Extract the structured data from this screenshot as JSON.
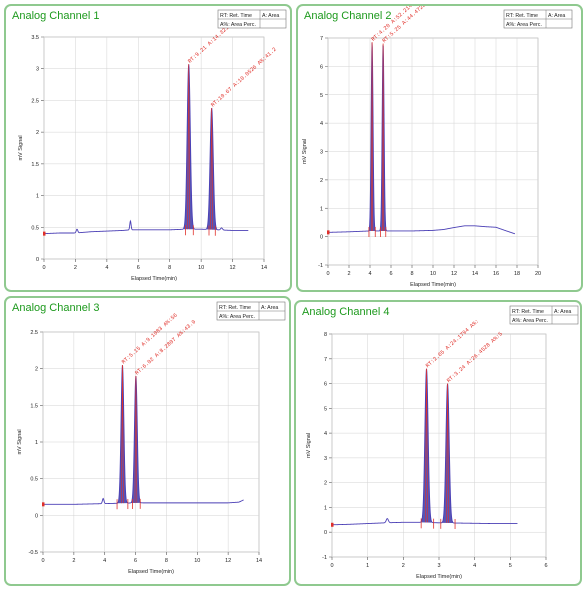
{
  "chart_data": [
    {
      "type": "line",
      "title": "Analog Channel 1",
      "xlabel": "Elapsed Time(min)",
      "ylabel": "mV Signal",
      "xlim": [
        0,
        14
      ],
      "ylim": [
        0,
        3.5
      ],
      "xticks": [
        "0",
        "2",
        "4",
        "6",
        "8",
        "10",
        "12",
        "14"
      ],
      "yticks": [
        "0",
        "0.5",
        "1",
        "1.5",
        "2",
        "2.5",
        "3",
        "3.5"
      ],
      "legend": {
        "position": "top-right",
        "rows": [
          [
            "RT: Ret. Time",
            "A: Area"
          ],
          [
            "A%: Area Perc.",
            ""
          ]
        ]
      },
      "series": [
        {
          "baseline": [
            [
              0.0,
              0.4
            ],
            [
              1.0,
              0.41
            ],
            [
              2.0,
              0.41
            ],
            [
              3.0,
              0.43
            ],
            [
              4.0,
              0.44
            ],
            [
              5.0,
              0.45
            ],
            [
              5.5,
              0.46
            ],
            [
              6.0,
              0.46
            ],
            [
              7.0,
              0.46
            ],
            [
              8.0,
              0.46
            ],
            [
              9.0,
              0.47
            ],
            [
              10.0,
              0.47
            ],
            [
              11.0,
              0.46
            ],
            [
              12.0,
              0.45
            ],
            [
              13.0,
              0.45
            ]
          ],
          "peaks": [
            [
              9.21,
              3.07,
              0.1
            ],
            [
              10.67,
              2.38,
              0.1
            ],
            [
              5.5,
              0.6,
              0.04
            ],
            [
              2.1,
              0.47,
              0.05
            ],
            [
              11.3,
              0.49,
              0.06
            ]
          ],
          "range": [
            0,
            13
          ]
        }
      ],
      "annotations": [
        "RT:9.21 A:14.3215 A%:5",
        "RT:10.67 A:10.0526 A%:41.2"
      ],
      "peak_labels": [
        {
          "x": 9.21,
          "y": 3.07
        },
        {
          "x": 10.67,
          "y": 2.38
        }
      ],
      "markers": [
        9.0,
        9.5,
        10.5,
        10.9
      ]
    },
    {
      "type": "line",
      "title": "Analog Channel 2",
      "xlabel": "Elapsed Time(min)",
      "ylabel": "mV Signal",
      "xlim": [
        0,
        20
      ],
      "ylim": [
        -1,
        7
      ],
      "xticks": [
        "0",
        "2",
        "4",
        "6",
        "8",
        "10",
        "12",
        "14",
        "16",
        "18",
        "20"
      ],
      "yticks": [
        "-1",
        "0",
        "1",
        "2",
        "3",
        "4",
        "5",
        "6",
        "7"
      ],
      "legend": {
        "position": "top-right",
        "rows": [
          [
            "RT: Ret. Time",
            "A: Area"
          ],
          [
            "A%: Area Perc.",
            ""
          ]
        ]
      },
      "series": [
        {
          "baseline": [
            [
              0.0,
              0.15
            ],
            [
              2.0,
              0.17
            ],
            [
              4.0,
              0.2
            ],
            [
              6.0,
              0.2
            ],
            [
              8.0,
              0.2
            ],
            [
              10.0,
              0.22
            ],
            [
              11.0,
              0.25
            ],
            [
              12.0,
              0.32
            ],
            [
              13.0,
              0.38
            ],
            [
              14.0,
              0.38
            ],
            [
              15.0,
              0.35
            ],
            [
              16.0,
              0.33
            ],
            [
              17.0,
              0.2
            ],
            [
              17.8,
              0.1
            ]
          ],
          "peaks": [
            [
              4.2,
              6.85,
              0.09
            ],
            [
              5.25,
              6.8,
              0.09
            ]
          ],
          "range": [
            0,
            17.8
          ]
        }
      ],
      "annotations": [
        "RT:4.20 A:52.2144 A%:4",
        "RT:5.25 A:44.4722 A%:4"
      ],
      "peak_labels": [
        {
          "x": 4.2,
          "y": 6.85
        },
        {
          "x": 5.25,
          "y": 6.8
        }
      ],
      "markers": [
        3.9,
        4.5,
        5.0,
        5.5
      ]
    },
    {
      "type": "line",
      "title": "Analog Channel 3",
      "xlabel": "Elapsed Time(min)",
      "ylabel": "mV Signal",
      "xlim": [
        0,
        14
      ],
      "ylim": [
        -0.5,
        2.5
      ],
      "xticks": [
        "0",
        "2",
        "4",
        "6",
        "8",
        "10",
        "12",
        "14"
      ],
      "yticks": [
        "-0.5",
        "0",
        "0.5",
        "1",
        "1.5",
        "2",
        "2.5"
      ],
      "legend": {
        "position": "top-right",
        "rows": [
          [
            "RT: Ret. Time",
            "A: Area"
          ],
          [
            "A%: Area Perc.",
            ""
          ]
        ]
      },
      "series": [
        {
          "baseline": [
            [
              0.0,
              0.15
            ],
            [
              2.0,
              0.15
            ],
            [
              4.0,
              0.16
            ],
            [
              6.0,
              0.17
            ],
            [
              8.0,
              0.17
            ],
            [
              10.0,
              0.17
            ],
            [
              12.0,
              0.17
            ],
            [
              12.7,
              0.18
            ],
            [
              13.0,
              0.21
            ]
          ],
          "peaks": [
            [
              5.15,
              2.05,
              0.09
            ],
            [
              6.02,
              1.9,
              0.09
            ],
            [
              3.9,
              0.23,
              0.05
            ]
          ],
          "range": [
            0,
            13
          ]
        }
      ],
      "annotations": [
        "RT:5.15 A:9.1083 A%:56",
        "RT:6.02 A:8.2807 A%:43.9"
      ],
      "peak_labels": [
        {
          "x": 5.15,
          "y": 2.05
        },
        {
          "x": 6.02,
          "y": 1.9
        }
      ],
      "markers": [
        4.8,
        5.5,
        5.8,
        6.3
      ]
    },
    {
      "type": "line",
      "title": "Analog Channel 4",
      "xlabel": "Elapsed Time(min)",
      "ylabel": "mV Signal",
      "xlim": [
        0,
        6
      ],
      "ylim": [
        -1,
        8
      ],
      "xticks": [
        "0",
        "1",
        "2",
        "3",
        "4",
        "5",
        "6"
      ],
      "yticks": [
        "-1",
        "0",
        "1",
        "2",
        "3",
        "4",
        "5",
        "6",
        "7",
        "8"
      ],
      "legend": {
        "position": "top-right",
        "rows": [
          [
            "RT: Ret. Time",
            "A: Area"
          ],
          [
            "A%: Area Perc.",
            ""
          ]
        ]
      },
      "series": [
        {
          "baseline": [
            [
              0.0,
              0.3
            ],
            [
              0.5,
              0.32
            ],
            [
              1.0,
              0.35
            ],
            [
              1.5,
              0.38
            ],
            [
              2.0,
              0.4
            ],
            [
              2.5,
              0.4
            ],
            [
              3.0,
              0.38
            ],
            [
              3.5,
              0.37
            ],
            [
              4.0,
              0.36
            ],
            [
              4.5,
              0.35
            ],
            [
              5.0,
              0.35
            ],
            [
              5.2,
              0.35
            ]
          ],
          "peaks": [
            [
              2.65,
              6.6,
              0.045
            ],
            [
              3.24,
              6.0,
              0.045
            ],
            [
              1.55,
              0.55,
              0.03
            ]
          ],
          "range": [
            0,
            5.2
          ]
        }
      ],
      "annotations": [
        "RT:2.65 A:24.1794 A%:",
        "RT:3.24 A:26.4528 A%:5"
      ],
      "peak_labels": [
        {
          "x": 2.65,
          "y": 6.6
        },
        {
          "x": 3.24,
          "y": 6.0
        }
      ],
      "markers": [
        2.5,
        2.85,
        3.05,
        3.45
      ]
    }
  ],
  "colors": {
    "signal": "#4a3fb5",
    "peak_fill": "#3a37a8",
    "annotation": "#e0302a",
    "title": "#1e9a1e",
    "panel_border": "#8fc98f",
    "grid": "#d3d3d3"
  }
}
